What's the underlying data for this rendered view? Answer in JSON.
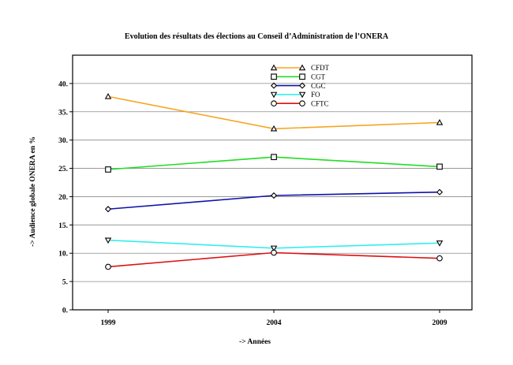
{
  "chart_data": {
    "type": "line",
    "title": "Evolution des résultats des élections au Conseil d’Administration de l’ONERA",
    "xlabel": "-> Années",
    "ylabel": "-> Audience globale ONERA en %",
    "x": [
      "1999",
      "2004",
      "2009"
    ],
    "ylim": [
      0,
      45
    ],
    "yticks": [
      0,
      5,
      10,
      15,
      20,
      25,
      30,
      35,
      40
    ],
    "ytick_labels": [
      "0.",
      "5.",
      "10.",
      "15.",
      "20.",
      "25.",
      "30.",
      "35.",
      "40."
    ],
    "grid": true,
    "legend_position": "top-center",
    "series": [
      {
        "name": "CFDT",
        "values": [
          37.7,
          32.0,
          33.1
        ],
        "color": "#f5a623",
        "marker": "triangle-up"
      },
      {
        "name": "CGT",
        "values": [
          24.8,
          27.0,
          25.3
        ],
        "color": "#22dd22",
        "marker": "square"
      },
      {
        "name": "CGC",
        "values": [
          17.8,
          20.2,
          20.8
        ],
        "color": "#1111aa",
        "marker": "diamond"
      },
      {
        "name": "FO",
        "values": [
          12.3,
          10.9,
          11.8
        ],
        "color": "#33eeee",
        "marker": "triangle-down"
      },
      {
        "name": "CFTC",
        "values": [
          7.6,
          10.1,
          9.1
        ],
        "color": "#dd1111",
        "marker": "circle"
      }
    ]
  }
}
